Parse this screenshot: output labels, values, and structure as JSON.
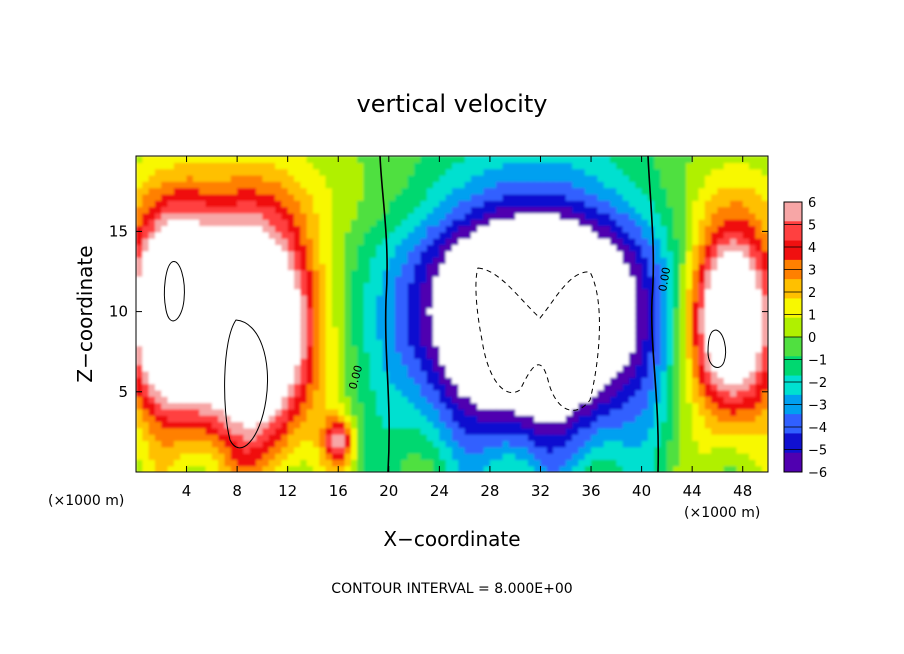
{
  "chart_data": {
    "type": "heatmap",
    "title": "vertical velocity",
    "xlabel": "X−coordinate",
    "ylabel": "Z−coordinate",
    "x_unit_left": "(×1000 m)",
    "x_unit_right": "(×1000 m)",
    "footer": "CONTOUR INTERVAL = 8.000E+00",
    "contour_label": "0.00",
    "xlim": [
      0,
      50
    ],
    "ylim": [
      0,
      19.7
    ],
    "x_ticks": [
      4,
      8,
      12,
      16,
      20,
      24,
      28,
      32,
      36,
      40,
      44,
      48
    ],
    "y_ticks": [
      5,
      10,
      15
    ],
    "colorbar": {
      "min": -6,
      "max": 6,
      "ticks": [
        "6",
        "5",
        "4",
        "3",
        "2",
        "1",
        "0",
        "−1",
        "−2",
        "−3",
        "−4",
        "−5",
        "−6"
      ],
      "colors": [
        "#f7a6a6",
        "#ff4040",
        "#f01010",
        "#ff8000",
        "#ffc000",
        "#f8f800",
        "#b0f000",
        "#50e040",
        "#00d870",
        "#00e0d0",
        "#00a0f0",
        "#3060ff",
        "#1010d0",
        "#5000b0"
      ]
    },
    "features": [
      {
        "kind": "updraft",
        "x": 3,
        "z": 10,
        "sx": 3.6,
        "sz": 6,
        "peak": 12
      },
      {
        "kind": "updraft",
        "x": 9.5,
        "z": 9,
        "sx": 4.5,
        "sz": 7,
        "peak": 12
      },
      {
        "kind": "updraft",
        "x": 47,
        "z": 9.5,
        "sx": 3.5,
        "sz": 6,
        "peak": 11
      },
      {
        "kind": "updraft",
        "x": 16,
        "z": 2,
        "sx": 1.2,
        "sz": 1.5,
        "peak": 5
      },
      {
        "kind": "downdraft",
        "x": 31.5,
        "z": 10,
        "sx": 10,
        "sz": 8,
        "peak": -12
      },
      {
        "kind": "ambient",
        "x": 25,
        "z": 17,
        "sx": 40,
        "sz": 3,
        "peak": 0.8
      }
    ]
  }
}
